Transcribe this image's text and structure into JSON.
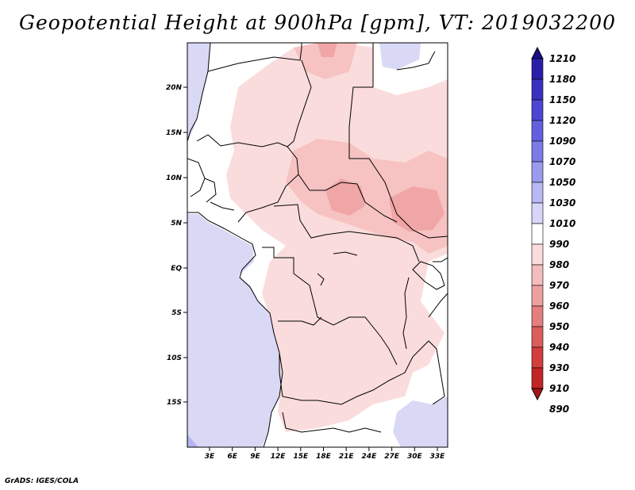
{
  "title": "Geopotential Height at 900hPa [gpm], VT: 2019032200",
  "credit": "GrADS: IGES/COLA",
  "map": {
    "lat_ticks": [
      "20N",
      "15N",
      "10N",
      "5N",
      "EQ",
      "5S",
      "10S",
      "15S"
    ],
    "lon_ticks": [
      "3E",
      "6E",
      "9E",
      "12E",
      "15E",
      "18E",
      "21E",
      "24E",
      "27E",
      "30E",
      "33E"
    ],
    "colors": {
      "ocean_low": "#d9d9f6",
      "ocean_lower": "#b4b4ee",
      "pale_red": "#fbdcdc",
      "light_red": "#f7c2c2",
      "mid_red": "#f0a6a6",
      "blue_patch": "#d9d9f6"
    }
  },
  "colorbar": {
    "labels": [
      "1210",
      "1180",
      "1150",
      "1120",
      "1090",
      "1070",
      "1050",
      "1030",
      "1010",
      "990",
      "980",
      "970",
      "960",
      "950",
      "940",
      "930",
      "910",
      "890"
    ],
    "colors": [
      "#1a0d8c",
      "#2a1ea8",
      "#3b31bf",
      "#4c46d3",
      "#6360e0",
      "#7c7ce8",
      "#9a9aee",
      "#b8b8f4",
      "#d6d6f8",
      "#ffffff",
      "#fbdcdc",
      "#f4bcbc",
      "#eea0a0",
      "#e57f7f",
      "#dc5c5c",
      "#d23d3d",
      "#c22525",
      "#a81414"
    ]
  }
}
